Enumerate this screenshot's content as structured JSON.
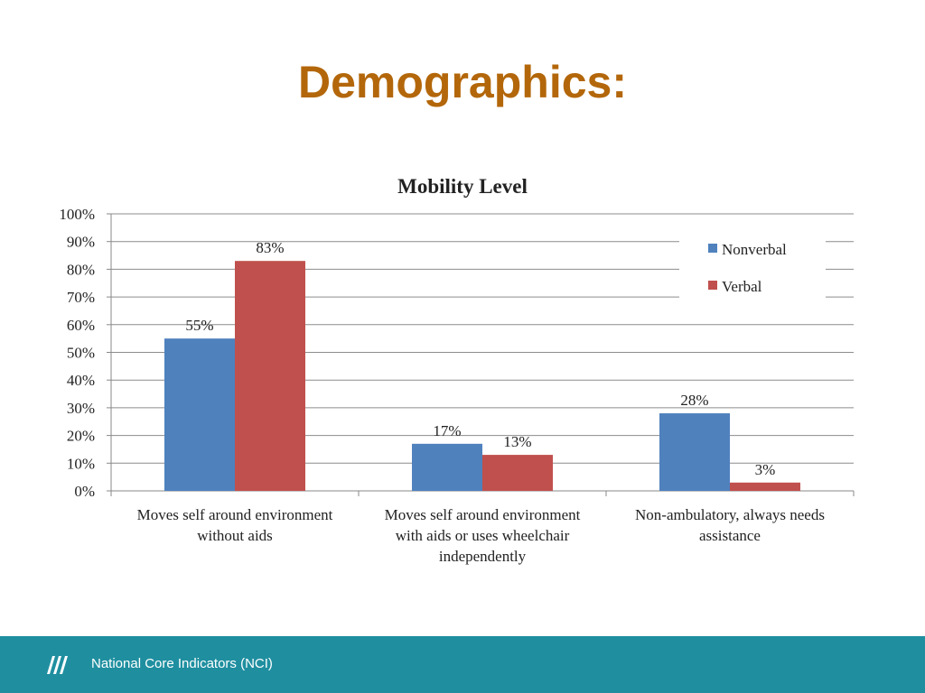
{
  "slide": {
    "title": "Demographics:",
    "footer_text": "National Core Indicators (NCI)"
  },
  "chart_data": {
    "type": "bar",
    "title": "Mobility Level",
    "categories": [
      [
        "Moves self around environment",
        "without aids"
      ],
      [
        "Moves self around environment",
        "with aids or uses wheelchair",
        "independently"
      ],
      [
        "Non-ambulatory, always needs",
        "assistance"
      ]
    ],
    "series": [
      {
        "name": "Nonverbal",
        "values": [
          55,
          17,
          28
        ],
        "labels": [
          "55%",
          "17%",
          "28%"
        ],
        "color": "#4f81bd"
      },
      {
        "name": "Verbal",
        "values": [
          83,
          13,
          3
        ],
        "labels": [
          "83%",
          "13%",
          "3%"
        ],
        "color": "#c0504d"
      }
    ],
    "ylim": [
      0,
      100
    ],
    "yticks": [
      0,
      10,
      20,
      30,
      40,
      50,
      60,
      70,
      80,
      90,
      100
    ],
    "ytick_labels": [
      "0%",
      "10%",
      "20%",
      "30%",
      "40%",
      "50%",
      "60%",
      "70%",
      "80%",
      "90%",
      "100%"
    ],
    "grid": true,
    "legend": "right"
  }
}
